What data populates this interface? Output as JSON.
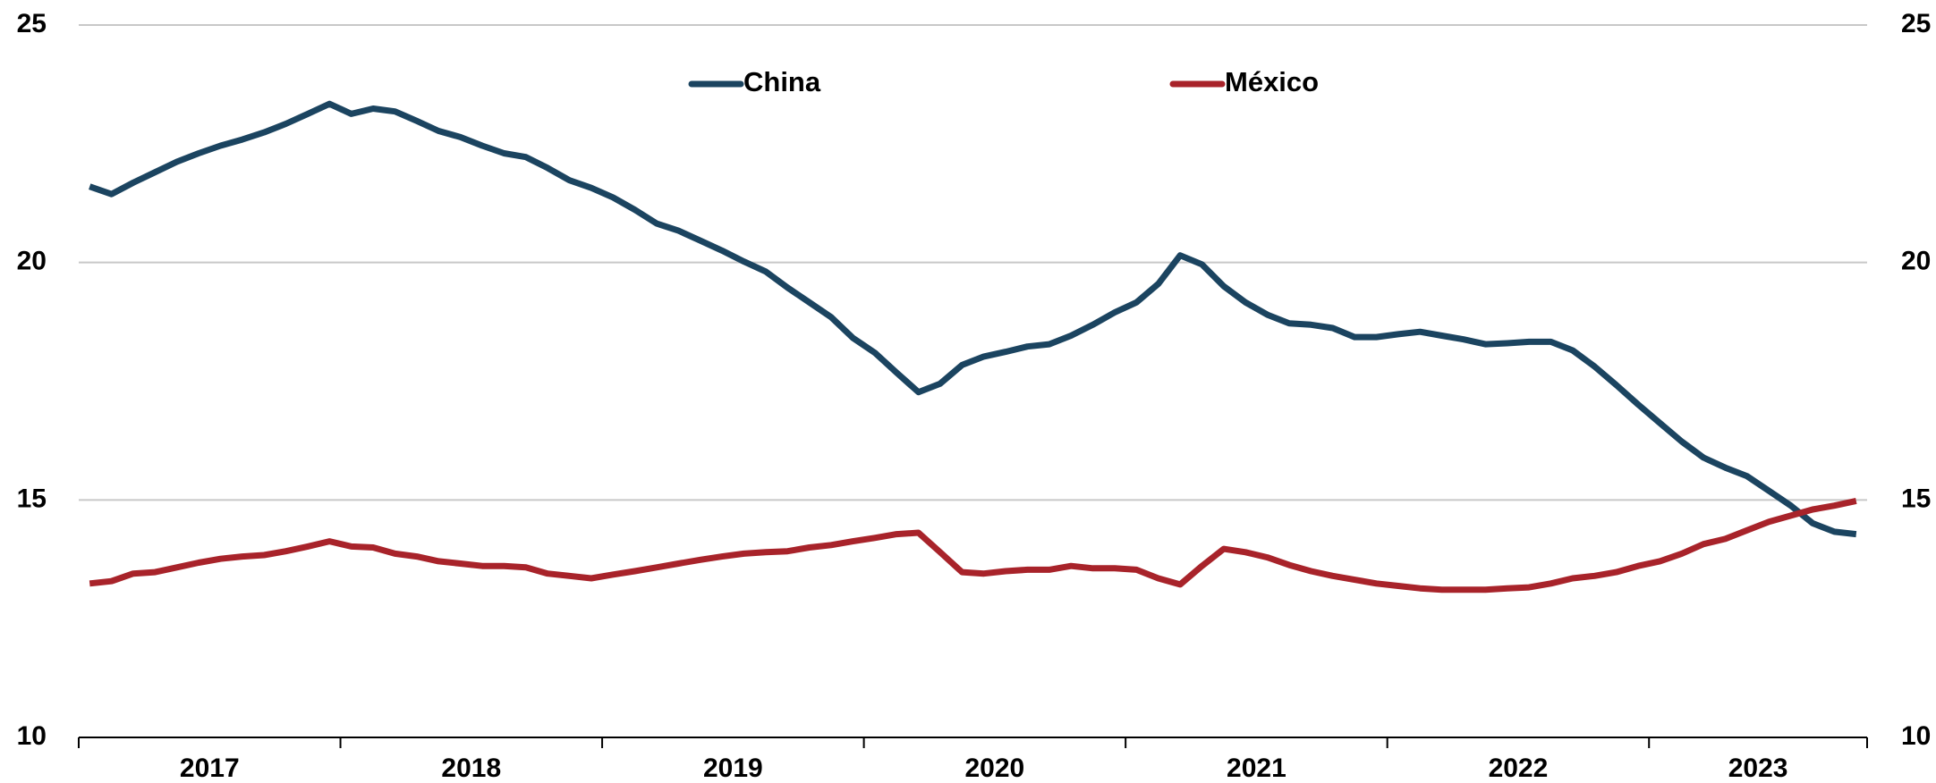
{
  "chart_data": {
    "type": "line",
    "categories": [
      null,
      null,
      null,
      null,
      null,
      null,
      "2017",
      null,
      null,
      null,
      null,
      null,
      null,
      null,
      null,
      null,
      null,
      null,
      "2018",
      null,
      null,
      null,
      null,
      null,
      null,
      null,
      null,
      null,
      null,
      null,
      "2019",
      null,
      null,
      null,
      null,
      null,
      null,
      null,
      null,
      null,
      null,
      null,
      "2020",
      null,
      null,
      null,
      null,
      null,
      null,
      null,
      null,
      null,
      null,
      null,
      "2021",
      null,
      null,
      null,
      null,
      null,
      null,
      null,
      null,
      null,
      null,
      null,
      "2022",
      null,
      null,
      null,
      null,
      null,
      null,
      null,
      null,
      null,
      null,
      "2023",
      null,
      null,
      null,
      null
    ],
    "series": [
      {
        "name": "China",
        "color": "#1b4460",
        "values": [
          21.6,
          21.44,
          21.68,
          21.9,
          22.12,
          22.3,
          22.46,
          22.59,
          22.74,
          22.92,
          23.13,
          23.34,
          23.13,
          23.24,
          23.18,
          22.98,
          22.77,
          22.64,
          22.46,
          22.3,
          22.22,
          21.99,
          21.73,
          21.57,
          21.37,
          21.11,
          20.82,
          20.67,
          20.46,
          20.25,
          20.02,
          19.81,
          19.47,
          19.16,
          18.85,
          18.41,
          18.1,
          17.68,
          17.27,
          17.45,
          17.84,
          18.02,
          18.12,
          18.23,
          18.28,
          18.46,
          18.69,
          18.95,
          19.16,
          19.55,
          20.15,
          19.96,
          19.5,
          19.16,
          18.9,
          18.72,
          18.69,
          18.62,
          18.43,
          18.43,
          18.49,
          18.54,
          18.46,
          18.38,
          18.28,
          18.3,
          18.33,
          18.33,
          18.15,
          17.81,
          17.42,
          17.01,
          16.62,
          16.23,
          15.89,
          15.68,
          15.5,
          15.19,
          14.88,
          14.51,
          14.33,
          14.28
        ]
      },
      {
        "name": "México",
        "color": "#a8232a",
        "values": [
          13.24,
          13.29,
          13.45,
          13.48,
          13.58,
          13.68,
          13.76,
          13.81,
          13.84,
          13.92,
          14.02,
          14.13,
          14.02,
          14.0,
          13.87,
          13.81,
          13.71,
          13.66,
          13.61,
          13.61,
          13.58,
          13.45,
          13.4,
          13.35,
          13.43,
          13.5,
          13.58,
          13.66,
          13.74,
          13.81,
          13.87,
          13.9,
          13.92,
          14.0,
          14.05,
          14.13,
          14.2,
          14.28,
          14.31,
          13.9,
          13.48,
          13.45,
          13.5,
          13.53,
          13.53,
          13.61,
          13.56,
          13.56,
          13.53,
          13.35,
          13.22,
          13.61,
          13.97,
          13.9,
          13.79,
          13.63,
          13.5,
          13.4,
          13.32,
          13.24,
          13.19,
          13.14,
          13.11,
          13.11,
          13.11,
          13.14,
          13.16,
          13.24,
          13.35,
          13.4,
          13.48,
          13.61,
          13.71,
          13.87,
          14.07,
          14.18,
          14.36,
          14.54,
          14.67,
          14.8,
          14.88,
          14.98
        ]
      }
    ],
    "ylim": [
      10,
      25
    ],
    "yticks": [
      10,
      15,
      20,
      25
    ],
    "grid": true
  }
}
